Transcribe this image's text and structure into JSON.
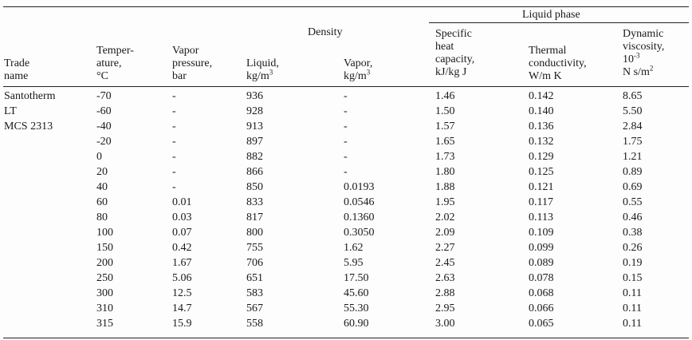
{
  "header": {
    "liquid_phase": "Liquid phase",
    "density": "Density",
    "trade_name": [
      "Trade",
      "name"
    ],
    "temperature": [
      "Temper-",
      "ature,",
      "°C"
    ],
    "vapor_pressure": [
      "Vapor",
      "pressure,",
      "bar"
    ],
    "liquid_density": {
      "line1": "Liquid,",
      "unit": "kg/m",
      "exp": "3"
    },
    "vapor_density": {
      "line1": "Vapor,",
      "unit": "kg/m",
      "exp": "3"
    },
    "specific_heat": [
      "Specific",
      "heat",
      "capacity,",
      "kJ/kg J"
    ],
    "thermal_conductivity": [
      "Thermal",
      "conductivity,",
      "W/m K"
    ],
    "dynamic_viscosity": {
      "lines": [
        "Dynamic",
        "viscosity,"
      ],
      "power_base": "10",
      "power_exp": "-3",
      "unit": "N s/m",
      "unit_exp": "2"
    }
  },
  "trade_name_lines": [
    "Santotherm",
    "LT",
    "MCS 2313"
  ],
  "rows": [
    {
      "t": "-70",
      "p": "-",
      "dl": "936",
      "dv": "-",
      "cp": "1.46",
      "k": "0.142",
      "mu": "8.65"
    },
    {
      "t": "-60",
      "p": "-",
      "dl": "928",
      "dv": "-",
      "cp": "1.50",
      "k": "0.140",
      "mu": "5.50"
    },
    {
      "t": "-40",
      "p": "-",
      "dl": "913",
      "dv": "-",
      "cp": "1.57",
      "k": "0.136",
      "mu": "2.84"
    },
    {
      "t": "-20",
      "p": "-",
      "dl": "897",
      "dv": "-",
      "cp": "1.65",
      "k": "0.132",
      "mu": "1.75"
    },
    {
      "t": "0",
      "p": "-",
      "dl": "882",
      "dv": "-",
      "cp": "1.73",
      "k": "0.129",
      "mu": "1.21"
    },
    {
      "t": "20",
      "p": "-",
      "dl": "866",
      "dv": "-",
      "cp": "1.80",
      "k": "0.125",
      "mu": "0.89"
    },
    {
      "t": "40",
      "p": "-",
      "dl": "850",
      "dv": "0.0193",
      "cp": "1.88",
      "k": "0.121",
      "mu": "0.69"
    },
    {
      "t": "60",
      "p": "0.01",
      "dl": "833",
      "dv": "0.0546",
      "cp": "1.95",
      "k": "0.117",
      "mu": "0.55"
    },
    {
      "t": "80",
      "p": "0.03",
      "dl": "817",
      "dv": "0.1360",
      "cp": "2.02",
      "k": "0.113",
      "mu": "0.46"
    },
    {
      "t": "100",
      "p": "0.07",
      "dl": "800",
      "dv": "0.3050",
      "cp": "2.09",
      "k": "0.109",
      "mu": "0.38"
    },
    {
      "t": "150",
      "p": "0.42",
      "dl": "755",
      "dv": "1.62",
      "cp": "2.27",
      "k": "0.099",
      "mu": "0.26"
    },
    {
      "t": "200",
      "p": "1.67",
      "dl": "706",
      "dv": "5.95",
      "cp": "2.45",
      "k": "0.089",
      "mu": "0.19"
    },
    {
      "t": "250",
      "p": "5.06",
      "dl": "651",
      "dv": "17.50",
      "cp": "2.63",
      "k": "0.078",
      "mu": "0.15"
    },
    {
      "t": "300",
      "p": "12.5",
      "dl": "583",
      "dv": "45.60",
      "cp": "2.88",
      "k": "0.068",
      "mu": "0.11"
    },
    {
      "t": "310",
      "p": "14.7",
      "dl": "567",
      "dv": "55.30",
      "cp": "2.95",
      "k": "0.066",
      "mu": "0.11"
    },
    {
      "t": "315",
      "p": "15.9",
      "dl": "558",
      "dv": "60.90",
      "cp": "3.00",
      "k": "0.065",
      "mu": "0.11"
    }
  ]
}
